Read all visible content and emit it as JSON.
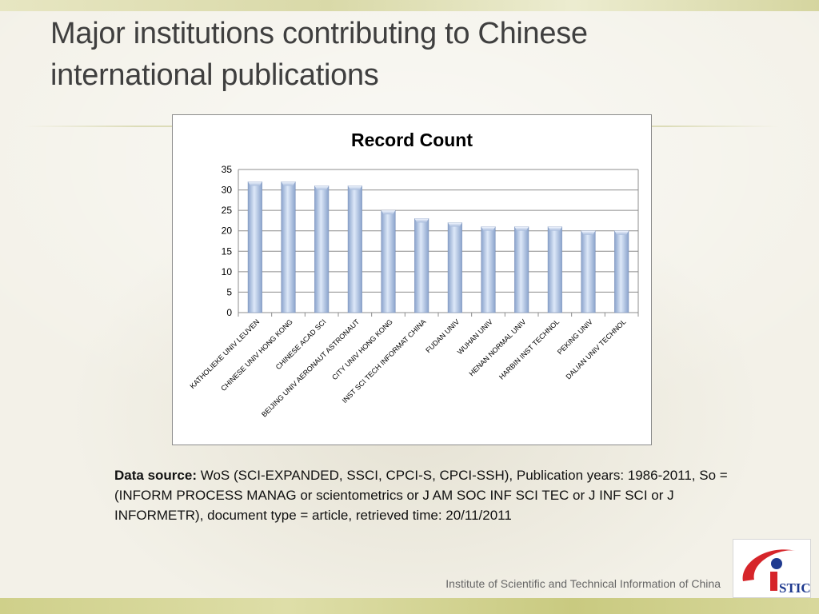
{
  "slide": {
    "title": "Major institutions contributing to Chinese international publications",
    "source_label": "Data source:",
    "source_text": " WoS (SCI-EXPANDED, SSCI, CPCI-S, CPCI-SSH), Publication years: 1986-2011, So = (INFORM PROCESS MANAG or scientometrics or J AM SOC INF SCI TEC or J INF SCI or J INFORMETR), document type = article, retrieved time: 20/11/2011",
    "footer": "Institute of Scientific and Technical Information of China",
    "logo_text": "STIC",
    "logo_icon": "istic-logo-icon"
  },
  "colors": {
    "bar_light": "#dde8f8",
    "bar_dark": "#8aa3cc",
    "gridline": "#8c8c8c",
    "logo_red": "#d6252a",
    "logo_blue": "#1f3a8f"
  },
  "chart_data": {
    "type": "bar",
    "title": "Record Count",
    "xlabel": "",
    "ylabel": "",
    "ylim": [
      0,
      35
    ],
    "yticks": [
      0,
      5,
      10,
      15,
      20,
      25,
      30,
      35
    ],
    "grid": true,
    "legend": "none",
    "categories": [
      "KATHOLIEKE UNIV LEUVEN",
      "CHINESE UNIV HONG KONG",
      "CHINESE ACAD SCI",
      "BEIJING UNIV AERONAUT ASTRONAUT",
      "CITY UNIV HONG KONG",
      "INST SCI TECH INFORMAT CHINA",
      "FUDAN UNIV",
      "WUHAN UNIV",
      "HENAN NORMAL UNIV",
      "HARBIN INST TECHNOL",
      "PEKING UNIV",
      "DALIAN UNIV TECHNOL"
    ],
    "values": [
      32,
      32,
      31,
      31,
      25,
      23,
      22,
      21,
      21,
      21,
      20,
      20
    ]
  }
}
